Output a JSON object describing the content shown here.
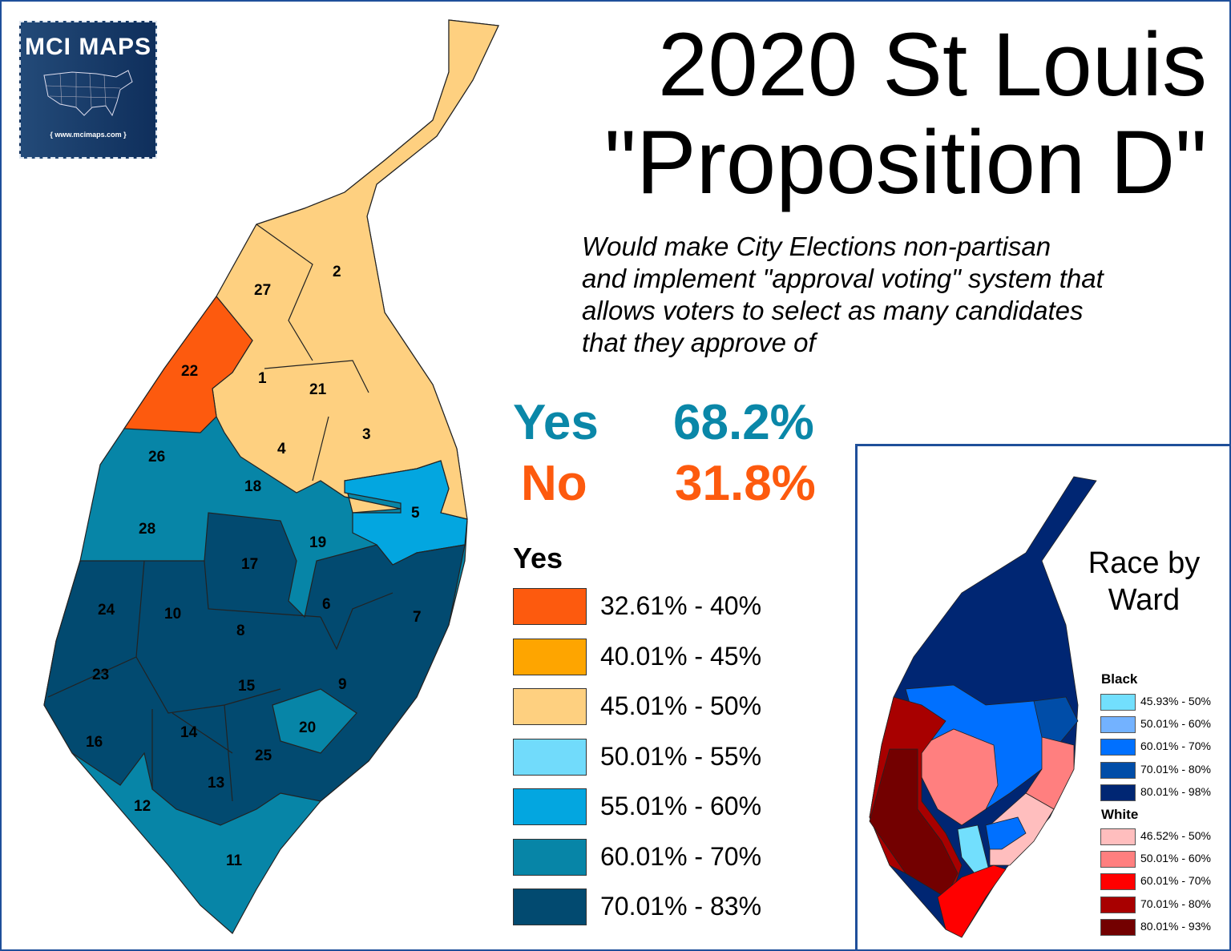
{
  "logo": {
    "brand": "MCI MAPS",
    "url": "{ www.mcimaps.com }"
  },
  "title": {
    "line1": "2020 St Louis",
    "line2": "\"Proposition D\""
  },
  "description": [
    "Would make City Elections non-partisan",
    "and implement \"approval voting\" system that",
    "allows voters to select as many candidates",
    "that they approve of"
  ],
  "results": {
    "yes_label": "Yes",
    "yes_value": "68.2%",
    "no_label": "No",
    "no_value": "31.8%",
    "yes_color": "#0a87a8",
    "no_color": "#fd5a0e"
  },
  "legend": {
    "title": "Yes",
    "items": [
      {
        "label": "32.61% - 40%",
        "color": "#fd5a0e"
      },
      {
        "label": "40.01% - 45%",
        "color": "#fea500"
      },
      {
        "label": "45.01% - 50%",
        "color": "#fed080"
      },
      {
        "label": "50.01% - 55%",
        "color": "#71dbfb"
      },
      {
        "label": "55.01% - 60%",
        "color": "#03a6e0"
      },
      {
        "label": "60.01% - 70%",
        "color": "#0785a7"
      },
      {
        "label": "70.01% - 83%",
        "color": "#024a70"
      }
    ]
  },
  "wards": [
    "1",
    "2",
    "3",
    "4",
    "5",
    "6",
    "7",
    "8",
    "9",
    "10",
    "11",
    "12",
    "13",
    "14",
    "15",
    "16",
    "17",
    "18",
    "19",
    "20",
    "21",
    "22",
    "23",
    "24",
    "25",
    "26",
    "27",
    "28"
  ],
  "inset": {
    "title": [
      "Race by",
      "Ward"
    ],
    "black_title": "Black",
    "black": [
      {
        "label": "45.93% - 50%",
        "color": "#72dffd"
      },
      {
        "label": "50.01% - 60%",
        "color": "#73b2ff"
      },
      {
        "label": "60.01% - 70%",
        "color": "#0070ff"
      },
      {
        "label": "70.01% - 80%",
        "color": "#004da8"
      },
      {
        "label": "80.01% - 98%",
        "color": "#002673"
      }
    ],
    "white_title": "White",
    "white": [
      {
        "label": "46.52% - 50%",
        "color": "#ffbebe"
      },
      {
        "label": "50.01% - 60%",
        "color": "#ff7f7f"
      },
      {
        "label": "60.01% - 70%",
        "color": "#ff0000"
      },
      {
        "label": "70.01% - 80%",
        "color": "#a80000"
      },
      {
        "label": "80.01% - 93%",
        "color": "#730000"
      }
    ]
  }
}
